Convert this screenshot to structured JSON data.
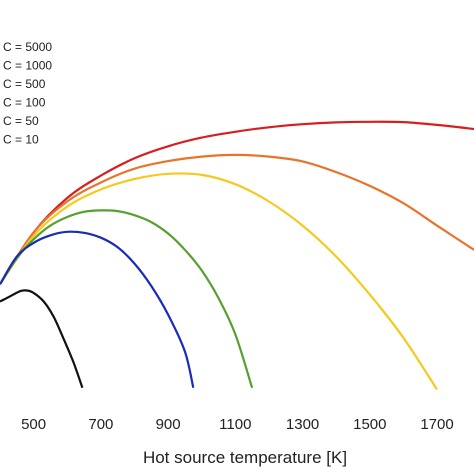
{
  "chart_data": {
    "type": "line",
    "title": "",
    "xlabel": "Hot source temperature [K]",
    "ylabel": "",
    "xlim": [
      400,
      1810
    ],
    "ylim": [
      0,
      1
    ],
    "x_ticks": [
      500,
      700,
      900,
      1100,
      1300,
      1500,
      1700
    ],
    "grid": false,
    "legend_position": "top-left",
    "series": [
      {
        "name": "C = 5000",
        "color": "#d62020",
        "points": [
          [
            400,
            0.35
          ],
          [
            500,
            0.5
          ],
          [
            600,
            0.6
          ],
          [
            700,
            0.665
          ],
          [
            800,
            0.715
          ],
          [
            900,
            0.75
          ],
          [
            1000,
            0.775
          ],
          [
            1100,
            0.792
          ],
          [
            1200,
            0.805
          ],
          [
            1300,
            0.814
          ],
          [
            1400,
            0.819
          ],
          [
            1500,
            0.821
          ],
          [
            1600,
            0.82
          ],
          [
            1700,
            0.812
          ],
          [
            1810,
            0.8
          ]
        ]
      },
      {
        "name": "C = 1000",
        "color": "#e8742a",
        "points": [
          [
            400,
            0.35
          ],
          [
            500,
            0.5
          ],
          [
            600,
            0.59
          ],
          [
            700,
            0.645
          ],
          [
            800,
            0.685
          ],
          [
            900,
            0.707
          ],
          [
            1000,
            0.72
          ],
          [
            1100,
            0.725
          ],
          [
            1200,
            0.72
          ],
          [
            1300,
            0.706
          ],
          [
            1400,
            0.675
          ],
          [
            1500,
            0.635
          ],
          [
            1600,
            0.585
          ],
          [
            1700,
            0.52
          ],
          [
            1810,
            0.45
          ]
        ]
      },
      {
        "name": "C = 500",
        "color": "#f5c91e",
        "points": [
          [
            400,
            0.35
          ],
          [
            500,
            0.49
          ],
          [
            600,
            0.575
          ],
          [
            700,
            0.625
          ],
          [
            800,
            0.655
          ],
          [
            900,
            0.67
          ],
          [
            1000,
            0.667
          ],
          [
            1100,
            0.64
          ],
          [
            1200,
            0.59
          ],
          [
            1300,
            0.52
          ],
          [
            1400,
            0.43
          ],
          [
            1500,
            0.32
          ],
          [
            1600,
            0.195
          ],
          [
            1700,
            0.045
          ]
        ]
      },
      {
        "name": "C = 100",
        "color": "#55a030",
        "points": [
          [
            400,
            0.35
          ],
          [
            450,
            0.425
          ],
          [
            500,
            0.48
          ],
          [
            550,
            0.52
          ],
          [
            600,
            0.545
          ],
          [
            650,
            0.56
          ],
          [
            700,
            0.564
          ],
          [
            750,
            0.562
          ],
          [
            800,
            0.55
          ],
          [
            850,
            0.53
          ],
          [
            900,
            0.497
          ],
          [
            950,
            0.45
          ],
          [
            1000,
            0.39
          ],
          [
            1050,
            0.31
          ],
          [
            1100,
            0.205
          ],
          [
            1150,
            0.05
          ]
        ]
      },
      {
        "name": "C = 50",
        "color": "#1a2bb8",
        "points": [
          [
            400,
            0.35
          ],
          [
            450,
            0.43
          ],
          [
            500,
            0.47
          ],
          [
            550,
            0.492
          ],
          [
            600,
            0.502
          ],
          [
            650,
            0.499
          ],
          [
            700,
            0.485
          ],
          [
            750,
            0.457
          ],
          [
            800,
            0.41
          ],
          [
            850,
            0.345
          ],
          [
            900,
            0.262
          ],
          [
            950,
            0.155
          ],
          [
            975,
            0.05
          ]
        ]
      },
      {
        "name": "C = 10",
        "color": "#111111",
        "points": [
          [
            400,
            0.3
          ],
          [
            430,
            0.315
          ],
          [
            460,
            0.33
          ],
          [
            480,
            0.332
          ],
          [
            500,
            0.325
          ],
          [
            530,
            0.3
          ],
          [
            560,
            0.255
          ],
          [
            590,
            0.19
          ],
          [
            620,
            0.12
          ],
          [
            645,
            0.05
          ]
        ]
      }
    ]
  }
}
